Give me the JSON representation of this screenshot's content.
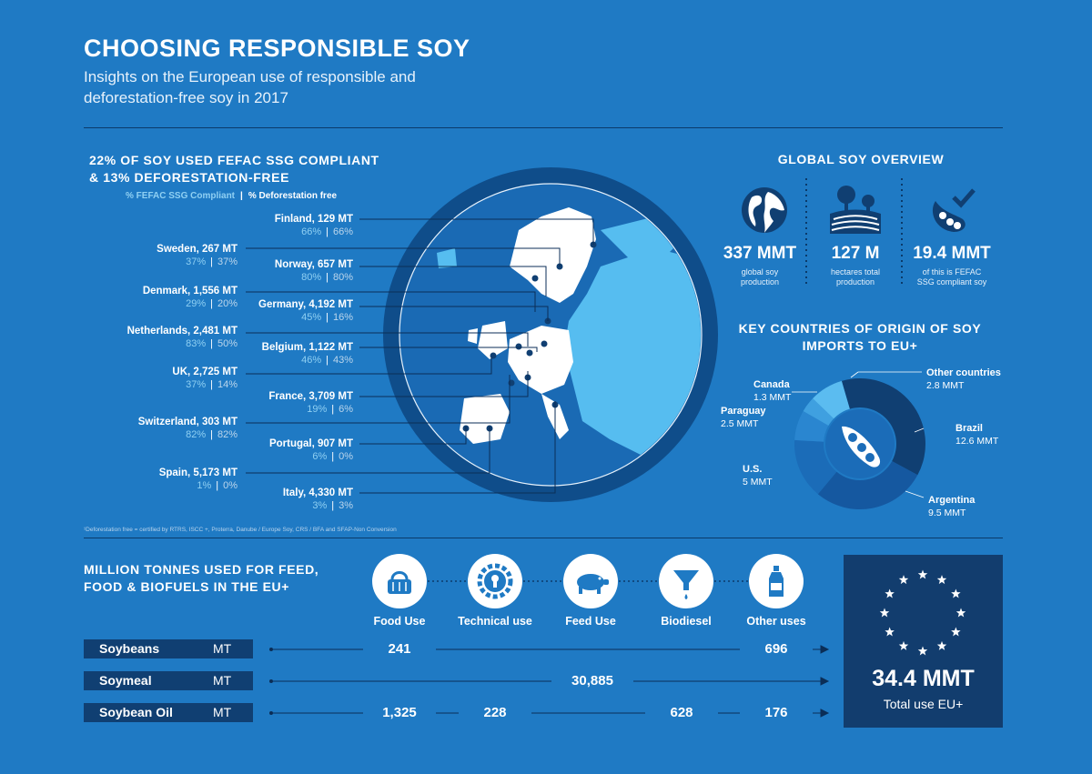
{
  "header": {
    "title": "CHOOSING RESPONSIBLE SOY",
    "subtitle_line1": "Insights on the European use of responsible and",
    "subtitle_line2": "deforestation-free soy in 2017"
  },
  "left_section": {
    "heading_line1": "22% OF SOY USED FEFAC SSG COMPLIANT",
    "heading_line2": "& 13% DEFORESTATION-FREE",
    "legend_a": "% FEFAC SSG Compliant",
    "legend_sep": "|",
    "legend_b": "% Deforestation free",
    "countries": [
      {
        "name": "Finland, 129 MT",
        "fefac": "66%",
        "defo": "66%"
      },
      {
        "name": "Sweden, 267 MT",
        "fefac": "37%",
        "defo": "37%"
      },
      {
        "name": "Norway, 657 MT",
        "fefac": "80%",
        "defo": "80%"
      },
      {
        "name": "Denmark, 1,556 MT",
        "fefac": "29%",
        "defo": "20%"
      },
      {
        "name": "Germany, 4,192 MT",
        "fefac": "45%",
        "defo": "16%"
      },
      {
        "name": "Netherlands, 2,481 MT",
        "fefac": "83%",
        "defo": "50%"
      },
      {
        "name": "Belgium, 1,122 MT",
        "fefac": "46%",
        "defo": "43%"
      },
      {
        "name": "UK, 2,725 MT",
        "fefac": "37%",
        "defo": "14%"
      },
      {
        "name": "France, 3,709 MT",
        "fefac": "19%",
        "defo": "6%"
      },
      {
        "name": "Switzerland, 303 MT",
        "fefac": "82%",
        "defo": "82%"
      },
      {
        "name": "Portugal, 907 MT",
        "fefac": "6%",
        "defo": "0%"
      },
      {
        "name": "Spain, 5,173 MT",
        "fefac": "1%",
        "defo": "0%"
      },
      {
        "name": "Italy, 4,330 MT",
        "fefac": "3%",
        "defo": "3%"
      }
    ],
    "bar": "|",
    "footnote": "¹Deforestation free = certified by RTRS, ISCC +, Proterra, Danube / Europe Soy, CRS / BFA and SFAP-Non Conversion"
  },
  "global_overview": {
    "heading": "GLOBAL SOY OVERVIEW",
    "stats": [
      {
        "value": "337 MMT",
        "label_line1": "global soy",
        "label_line2": "production",
        "icon": "globe-icon"
      },
      {
        "value": "127 M",
        "label_line1": "hectares total",
        "label_line2": "production",
        "icon": "farmland-icon"
      },
      {
        "value": "19.4 MMT",
        "label_line1": "of this is FEFAC",
        "label_line2": "SSG compliant soy",
        "icon": "soy-check-icon"
      }
    ]
  },
  "origin": {
    "heading_line1": "KEY COUNTRIES OF ORIGIN OF SOY",
    "heading_line2": "IMPORTS TO EU+",
    "slices": [
      {
        "name": "Brazil",
        "value": "12.6 MMT",
        "amount": 12.6,
        "color": "#103f72"
      },
      {
        "name": "Argentina",
        "value": "9.5 MMT",
        "amount": 9.5,
        "color": "#1558a0"
      },
      {
        "name": "U.S.",
        "value": "5 MMT",
        "amount": 5,
        "color": "#1b6cb8"
      },
      {
        "name": "Paraguay",
        "value": "2.5 MMT",
        "amount": 2.5,
        "color": "#2a86d0"
      },
      {
        "name": "Canada",
        "value": "1.3 MMT",
        "amount": 1.3,
        "color": "#3fa0e0"
      },
      {
        "name": "Other countries",
        "value": "2.8 MMT",
        "amount": 2.8,
        "color": "#5bbcf0"
      }
    ]
  },
  "usage": {
    "heading_line1": "MILLION TONNES USED FOR FEED,",
    "heading_line2": "FOOD & BIOFUELS IN THE EU+",
    "uses": [
      {
        "label": "Food Use",
        "icon": "food-basket-icon"
      },
      {
        "label": "Technical use",
        "icon": "gear-icon"
      },
      {
        "label": "Feed Use",
        "icon": "pig-icon"
      },
      {
        "label": "Biodiesel",
        "icon": "funnel-icon"
      },
      {
        "label": "Other uses",
        "icon": "bottle-icon"
      }
    ],
    "unit": "MT",
    "rows": [
      {
        "name": "Soybeans",
        "values": [
          "241",
          "696"
        ]
      },
      {
        "name": "Soymeal",
        "values": [
          "30,885"
        ]
      },
      {
        "name": "Soybean Oil",
        "values": [
          "1,325",
          "228",
          "628",
          "176"
        ]
      }
    ],
    "total_value": "34.4 MMT",
    "total_label": "Total use EU+"
  }
}
